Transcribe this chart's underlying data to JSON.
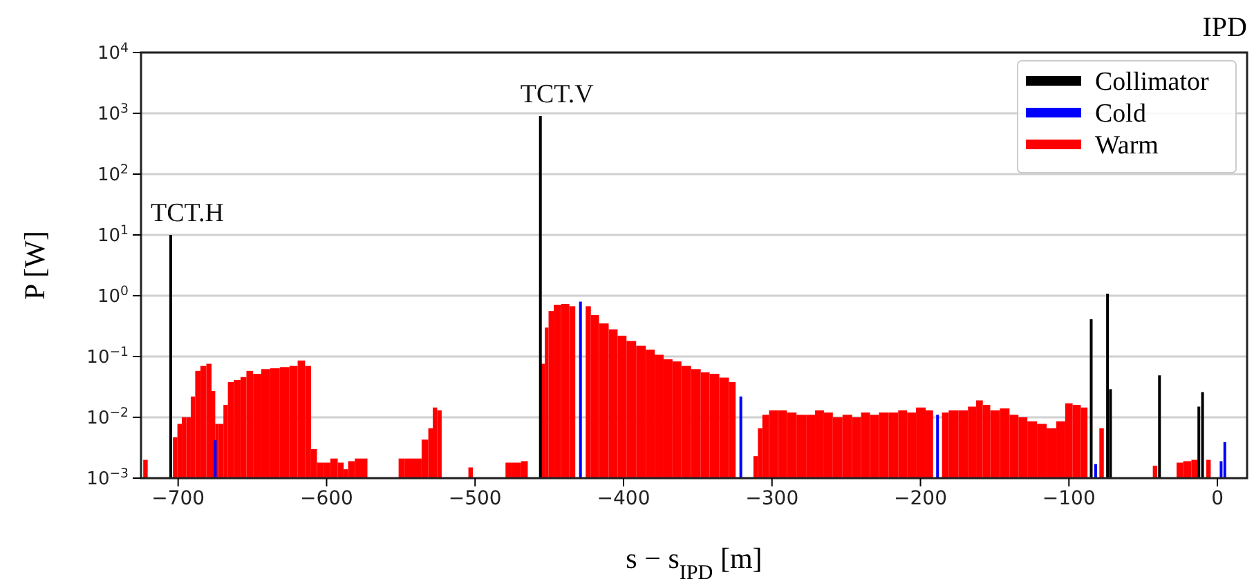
{
  "chart_data": {
    "type": "bar",
    "title": "IPD",
    "xlabel": "s − s$_{IPD}$ [m]",
    "ylabel": "P [W]",
    "xlim": [
      -725,
      20
    ],
    "xticks": [
      {
        "value": -700,
        "label": "−700"
      },
      {
        "value": -600,
        "label": "−600"
      },
      {
        "value": -500,
        "label": "−500"
      },
      {
        "value": -400,
        "label": "−400"
      },
      {
        "value": -300,
        "label": "−300"
      },
      {
        "value": -200,
        "label": "−200"
      },
      {
        "value": -100,
        "label": "−100"
      },
      0
    ],
    "ylim": [
      0.001,
      10000
    ],
    "log": true,
    "yticks": [
      {
        "value": 0.001,
        "label": "10$^{−3}$"
      },
      {
        "value": 0.01,
        "label": "10$^{−2}$"
      },
      {
        "value": 0.1,
        "label": "10$^{−1}$"
      },
      {
        "value": 1,
        "label": "10$^{0}$"
      },
      {
        "value": 10,
        "label": "10$^{1}$"
      },
      {
        "value": 100,
        "label": "10$^{2}$"
      },
      {
        "value": 1000,
        "label": "10$^{3}$"
      },
      {
        "value": 10000,
        "label": "10$^{4}$"
      }
    ],
    "grid": "y",
    "legend": "top right",
    "annotations": [
      {
        "text": "TCT.H",
        "x": -705,
        "y": 10
      },
      {
        "text": "TCT.V",
        "x": -456,
        "y": 900
      }
    ],
    "series": [
      {
        "name": "Collimator",
        "color": "#000000",
        "x": [
          -705,
          -456,
          -85,
          -74,
          -72,
          -39,
          -12.5,
          -10
        ],
        "values": [
          10,
          900,
          0.41,
          1.08,
          0.029,
          0.049,
          0.015,
          0.026
        ]
      },
      {
        "name": "Cold",
        "color": "#0000ff",
        "x": [
          -675,
          -429,
          -321,
          -188.5,
          -82,
          2.5,
          5
        ],
        "values": [
          0.0042,
          0.8,
          0.022,
          0.011,
          0.0017,
          0.0019,
          0.0039
        ]
      },
      {
        "name": "Warm",
        "color": "#ff0000",
        "x": [
          -722,
          -702,
          -699,
          -696,
          -693,
          -690,
          -687,
          -683,
          -679,
          -676,
          -674,
          -671,
          -668,
          -665,
          -660,
          -656,
          -652,
          -647,
          -641,
          -635,
          -628,
          -622,
          -617,
          -612,
          -609,
          -604,
          -600,
          -595,
          -590,
          -587,
          -584,
          -578,
          -574,
          -550,
          -545,
          -539,
          -533,
          -530,
          -527,
          -524,
          -503,
          -478,
          -472,
          -466,
          -454,
          -452,
          -449,
          -445,
          -439,
          -434,
          -424,
          -420,
          -413,
          -407,
          -401,
          -395,
          -388,
          -382,
          -376,
          -370,
          -364,
          -358,
          -351,
          -345,
          -339,
          -332,
          -326,
          -311,
          -308,
          -305,
          -299,
          -293,
          -287,
          -280,
          -274,
          -268,
          -262,
          -256,
          -249,
          -243,
          -237,
          -231,
          -225,
          -218,
          -212,
          -206,
          -200,
          -193,
          -184,
          -178,
          -171,
          -165,
          -160,
          -156,
          -150,
          -143,
          -137,
          -131,
          -125,
          -118,
          -112,
          -105,
          -100,
          -95,
          -89,
          -78,
          -42,
          -26,
          -20,
          -15,
          -6
        ],
        "values": [
          0.002,
          0.0047,
          0.0078,
          0.01,
          0.01,
          0.022,
          0.058,
          0.07,
          0.076,
          0.027,
          0.0078,
          0.0078,
          0.016,
          0.038,
          0.041,
          0.046,
          0.058,
          0.052,
          0.062,
          0.064,
          0.067,
          0.07,
          0.086,
          0.07,
          0.003,
          0.0018,
          0.0018,
          0.0021,
          0.0018,
          0.0014,
          0.0019,
          0.0021,
          0.0021,
          0.0021,
          0.0021,
          0.0021,
          0.0043,
          0.0066,
          0.0145,
          0.013,
          0.0015,
          0.0018,
          0.0018,
          0.0019,
          0.076,
          0.3,
          0.56,
          0.71,
          0.73,
          0.67,
          0.67,
          0.48,
          0.35,
          0.28,
          0.22,
          0.18,
          0.15,
          0.13,
          0.107,
          0.09,
          0.083,
          0.07,
          0.062,
          0.055,
          0.052,
          0.045,
          0.038,
          0.0023,
          0.0066,
          0.011,
          0.013,
          0.013,
          0.012,
          0.011,
          0.011,
          0.013,
          0.012,
          0.01,
          0.011,
          0.01,
          0.012,
          0.011,
          0.012,
          0.012,
          0.013,
          0.012,
          0.0145,
          0.013,
          0.012,
          0.013,
          0.013,
          0.015,
          0.019,
          0.016,
          0.013,
          0.014,
          0.011,
          0.01,
          0.0086,
          0.0078,
          0.0066,
          0.0086,
          0.017,
          0.016,
          0.0145,
          0.0066,
          0.0016,
          0.0018,
          0.0019,
          0.002,
          0.002
        ]
      }
    ]
  }
}
